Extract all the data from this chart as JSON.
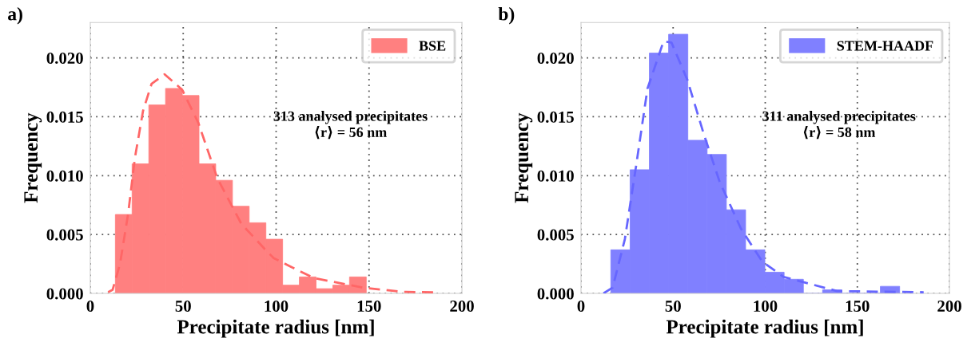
{
  "chart_data": [
    {
      "type": "histogram",
      "title": "a)",
      "xlabel": "Precipitate radius [nm]",
      "ylabel": "Frequency",
      "bins": [
        13.5,
        22.5,
        31.5,
        40.5,
        49.5,
        58.5,
        67.5,
        76.5,
        85.5,
        94.5,
        103.5,
        112.5,
        121.5,
        130.5,
        139.5,
        148.5
      ],
      "series": [
        {
          "name": "BSE",
          "color": "#ff8080",
          "values": [
            0.0067,
            0.011,
            0.016,
            0.0174,
            0.0168,
            0.011,
            0.0096,
            0.0074,
            0.006,
            0.0046,
            0.0007,
            0.0014,
            0.0004,
            0.0007,
            0.0014
          ]
        },
        {
          "type": "line",
          "color": "#ff6666",
          "line_style": "dashed",
          "x": [
            9.6,
            12,
            16,
            20.4,
            24,
            28.4,
            33,
            40,
            49.4,
            58.1,
            68.3,
            81.3,
            94.3,
            98.7,
            107.4,
            120.4,
            146.5,
            168,
            185
          ],
          "values": [
            0.0001,
            0.0003,
            0.0025,
            0.0068,
            0.0115,
            0.0155,
            0.0178,
            0.0186,
            0.0173,
            0.0145,
            0.0098,
            0.0059,
            0.0037,
            0.003,
            0.0023,
            0.0013,
            0.0005,
            0.00013,
            0.0001
          ]
        }
      ],
      "annotations": [
        "313 analysed precipitates\n⟨r⟩ = 56 nm"
      ],
      "xlim": [
        0,
        200
      ],
      "xticks": [
        0,
        50,
        100,
        150,
        200
      ],
      "ylim": [
        0,
        0.023
      ],
      "yticks": [
        {
          "value": 0,
          "label": "0.000"
        },
        {
          "value": 0.005,
          "label": "0.005"
        },
        {
          "value": 0.01,
          "label": "0.010"
        },
        {
          "value": 0.015,
          "label": "0.015"
        },
        {
          "value": 0.02,
          "label": "0.020"
        }
      ],
      "grid": true,
      "legend": "top right"
    },
    {
      "type": "histogram",
      "title": "b)",
      "xlabel": "Precipitate radius [nm]",
      "ylabel": "Frequency",
      "bins": [
        16.2,
        26.65,
        37.1,
        47.55,
        58.0,
        68.45,
        78.9,
        89.35,
        99.8,
        110.25,
        120.7,
        131.15,
        141.6,
        152.05,
        162.5,
        172.95
      ],
      "series": [
        {
          "name": "STEM-HAADF",
          "color": "#8080ff",
          "values": [
            0.0037,
            0.0105,
            0.0204,
            0.022,
            0.013,
            0.0118,
            0.0071,
            0.0037,
            0.0018,
            0.0012,
            0,
            0.0003,
            0,
            0,
            0.0006
          ]
        },
        {
          "type": "line",
          "color": "#6666ff",
          "line_style": "dashed",
          "x": [
            12.2,
            17.2,
            23.8,
            29.6,
            36.1,
            44.8,
            49.1,
            57.8,
            66.5,
            75.2,
            86.8,
            98.4,
            110,
            139,
            186
          ],
          "values": [
            0,
            0.0005,
            0.0046,
            0.0105,
            0.0174,
            0.0214,
            0.0213,
            0.0181,
            0.0136,
            0.0095,
            0.0055,
            0.0027,
            0.0014,
            0.0002,
            0.0001
          ]
        }
      ],
      "annotations": [
        "311 analysed precipitates\n⟨r⟩ = 58 nm"
      ],
      "xlim": [
        0,
        200
      ],
      "xticks": [
        0,
        50,
        100,
        150,
        200
      ],
      "ylim": [
        0,
        0.023
      ],
      "yticks": [
        {
          "value": 0,
          "label": "0.000"
        },
        {
          "value": 0.005,
          "label": "0.005"
        },
        {
          "value": 0.01,
          "label": "0.010"
        },
        {
          "value": 0.015,
          "label": "0.015"
        },
        {
          "value": 0.02,
          "label": "0.020"
        }
      ],
      "grid": true,
      "legend": "top right"
    }
  ]
}
